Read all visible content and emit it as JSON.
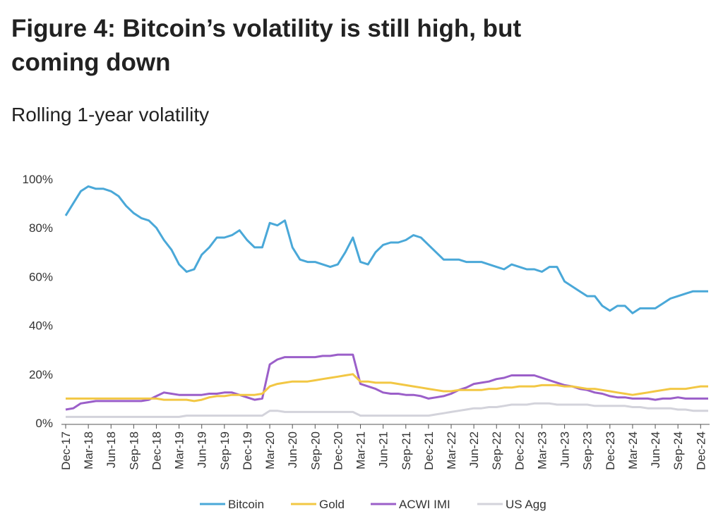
{
  "chart_data": {
    "type": "line",
    "title": "Figure 4: Bitcoin’s volatility is still high, but coming down",
    "subtitle": "Rolling 1-year volatility",
    "categories": [
      "Dec-17",
      null,
      null,
      "Mar-18",
      null,
      null,
      "Jun-18",
      null,
      null,
      "Sep-18",
      null,
      null,
      "Dec-18",
      null,
      null,
      "Mar-19",
      null,
      null,
      "Jun-19",
      null,
      null,
      "Sep-19",
      null,
      null,
      "Dec-19",
      null,
      null,
      "Mar-20",
      null,
      null,
      "Jun-20",
      null,
      null,
      "Sep-20",
      null,
      null,
      "Dec-20",
      null,
      null,
      "Mar-21",
      null,
      null,
      "Jun-21",
      null,
      null,
      "Sep-21",
      null,
      null,
      "Dec-21",
      null,
      null,
      "Mar-22",
      null,
      null,
      "Jun-22",
      null,
      null,
      "Sep-22",
      null,
      null,
      "Dec-22",
      null,
      null,
      "Mar-23",
      null,
      null,
      "Jun-23",
      null,
      null,
      "Sep-23",
      null,
      null,
      "Dec-23",
      null,
      null,
      "Mar-24",
      null,
      null,
      "Jun-24",
      null,
      null,
      "Sep-24",
      null,
      null,
      "Dec-24",
      null
    ],
    "series": [
      {
        "name": "Bitcoin",
        "color": "#4aa8d8",
        "values": [
          85,
          90,
          95,
          97,
          96,
          96,
          95,
          93,
          89,
          86,
          84,
          83,
          80,
          75,
          71,
          65,
          62,
          63,
          69,
          72,
          76,
          76,
          77,
          79,
          75,
          72,
          72,
          82,
          81,
          83,
          72,
          67,
          66,
          66,
          65,
          64,
          65,
          70,
          76,
          66,
          65,
          70,
          73,
          74,
          74,
          75,
          77,
          76,
          73,
          70,
          67,
          67,
          67,
          66,
          66,
          66,
          65,
          64,
          63,
          65,
          64,
          63,
          63,
          62,
          64,
          64,
          58,
          56,
          54,
          52,
          52,
          48,
          46,
          48,
          48,
          45,
          47,
          47,
          47,
          49,
          51,
          52,
          53,
          54,
          54,
          54
        ]
      },
      {
        "name": "Gold",
        "color": "#f2c744",
        "values": [
          10,
          10,
          10,
          10,
          10,
          10,
          10,
          10,
          10,
          10,
          10,
          10,
          10,
          9.5,
          9.5,
          9.5,
          9.5,
          9,
          9.5,
          10.5,
          11,
          11,
          11.5,
          11.5,
          11.5,
          11.5,
          12,
          15,
          16,
          16.5,
          17,
          17,
          17,
          17.5,
          18,
          18.5,
          19,
          19.5,
          20,
          17,
          17,
          16.5,
          16.5,
          16.5,
          16,
          15.5,
          15,
          14.5,
          14,
          13.5,
          13,
          13,
          13.5,
          13.5,
          13.5,
          13.5,
          14,
          14,
          14.5,
          14.5,
          15,
          15,
          15,
          15.5,
          15.5,
          15.5,
          15,
          15,
          14.5,
          14,
          14,
          13.5,
          13,
          12.5,
          12,
          11.5,
          12,
          12.5,
          13,
          13.5,
          14,
          14,
          14,
          14.5,
          15,
          15
        ]
      },
      {
        "name": "ACWI IMI",
        "color": "#9b5fc9",
        "values": [
          5.5,
          6,
          8,
          8.5,
          9,
          9,
          9,
          9,
          9,
          9,
          9,
          9.5,
          11,
          12.5,
          12,
          11.5,
          11.5,
          11.5,
          11.5,
          12,
          12,
          12.5,
          12.5,
          11.5,
          10.5,
          9.5,
          10,
          24,
          26,
          27,
          27,
          27,
          27,
          27,
          27.5,
          27.5,
          28,
          28,
          28,
          16,
          15,
          14,
          12.5,
          12,
          12,
          11.5,
          11.5,
          11,
          10,
          10.5,
          11,
          12,
          13.5,
          14.5,
          16,
          16.5,
          17,
          18,
          18.5,
          19.5,
          19.5,
          19.5,
          19.5,
          18.5,
          17.5,
          16.5,
          15.5,
          15,
          14,
          13.5,
          12.5,
          12,
          11,
          10.5,
          10.5,
          10,
          10,
          10,
          9.5,
          10,
          10,
          10.5,
          10,
          10,
          10,
          10
        ]
      },
      {
        "name": "US Agg",
        "color": "#d3d3db",
        "values": [
          2.5,
          2.5,
          2.5,
          2.5,
          2.5,
          2.5,
          2.5,
          2.5,
          2.5,
          2.5,
          2.5,
          2.5,
          2.5,
          2.5,
          2.5,
          2.5,
          3,
          3,
          3,
          3,
          3,
          3,
          3,
          3,
          3,
          3,
          3,
          5,
          5,
          4.5,
          4.5,
          4.5,
          4.5,
          4.5,
          4.5,
          4.5,
          4.5,
          4.5,
          4.5,
          3,
          3,
          3,
          3,
          3,
          3,
          3,
          3,
          3,
          3,
          3.5,
          4,
          4.5,
          5,
          5.5,
          6,
          6,
          6.5,
          6.5,
          7,
          7.5,
          7.5,
          7.5,
          8,
          8,
          8,
          7.5,
          7.5,
          7.5,
          7.5,
          7.5,
          7,
          7,
          7,
          7,
          7,
          6.5,
          6.5,
          6,
          6,
          6,
          6,
          5.5,
          5.5,
          5,
          5,
          5
        ]
      }
    ],
    "ylim": [
      0,
      100
    ],
    "yticks": [
      {
        "value": 0,
        "label": "0%"
      },
      {
        "value": 20,
        "label": "20%"
      },
      {
        "value": 40,
        "label": "40%"
      },
      {
        "value": 60,
        "label": "60%"
      },
      {
        "value": 80,
        "label": "80%"
      },
      {
        "value": 100,
        "label": "100%"
      }
    ],
    "legend": "bottom"
  }
}
